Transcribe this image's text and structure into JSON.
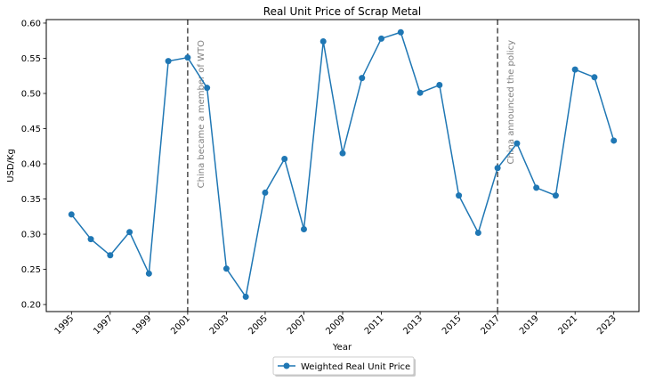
{
  "chart_data": {
    "type": "line",
    "title": "Real Unit Price of Scrap Metal",
    "xlabel": "Year",
    "ylabel": "USD/Kg",
    "xlim": [
      1993.7,
      2024.3
    ],
    "ylim": [
      0.19,
      0.605
    ],
    "x_ticks": [
      1995,
      1997,
      1999,
      2001,
      2003,
      2005,
      2007,
      2009,
      2011,
      2013,
      2015,
      2017,
      2019,
      2021,
      2023
    ],
    "y_ticks": [
      0.2,
      0.25,
      0.3,
      0.35,
      0.4,
      0.45,
      0.5,
      0.55,
      0.6
    ],
    "y_tick_labels": [
      "0.20",
      "0.25",
      "0.30",
      "0.35",
      "0.40",
      "0.45",
      "0.50",
      "0.55",
      "0.60"
    ],
    "grid": false,
    "legend_placement": "bottom-center",
    "series": [
      {
        "name": "Weighted Real Unit Price",
        "color": "#1f77b4",
        "x": [
          1995,
          1996,
          1997,
          1998,
          1999,
          2000,
          2001,
          2002,
          2003,
          2004,
          2005,
          2006,
          2007,
          2008,
          2009,
          2010,
          2011,
          2012,
          2013,
          2014,
          2015,
          2016,
          2017,
          2018,
          2019,
          2020,
          2021,
          2022,
          2023
        ],
        "values": [
          0.328,
          0.293,
          0.27,
          0.303,
          0.244,
          0.546,
          0.551,
          0.508,
          0.251,
          0.211,
          0.359,
          0.407,
          0.307,
          0.574,
          0.415,
          0.522,
          0.578,
          0.587,
          0.501,
          0.512,
          0.355,
          0.302,
          0.394,
          0.429,
          0.366,
          0.355,
          0.534,
          0.523,
          0.433
        ]
      }
    ],
    "annotations": [
      {
        "x": 2001,
        "text": "China became a member of WTO",
        "color": "#808080"
      },
      {
        "x": 2017,
        "text": "China announced the policy",
        "color": "#808080"
      }
    ]
  }
}
